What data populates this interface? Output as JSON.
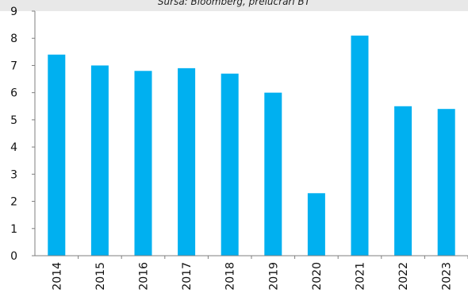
{
  "source_note": "Sursa: Bloomberg, prelucrări BT",
  "chart_data": {
    "type": "bar",
    "title": "",
    "xlabel": "",
    "ylabel": "",
    "categories": [
      "2014",
      "2015",
      "2016",
      "2017",
      "2018",
      "2019",
      "2020",
      "2021",
      "2022",
      "2023"
    ],
    "values": [
      7.4,
      7.0,
      6.8,
      6.9,
      6.7,
      6.0,
      2.3,
      8.1,
      5.5,
      5.4
    ],
    "ylim": [
      0,
      9
    ],
    "yticks": [
      "0",
      "1",
      "2",
      "3",
      "4",
      "5",
      "6",
      "7",
      "8",
      "9"
    ],
    "bar_color": "#00b0f0",
    "grid": false,
    "legend": "none"
  }
}
